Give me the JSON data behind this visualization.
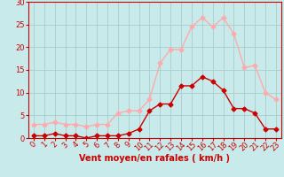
{
  "x": [
    0,
    1,
    2,
    3,
    4,
    5,
    6,
    7,
    8,
    9,
    10,
    11,
    12,
    13,
    14,
    15,
    16,
    17,
    18,
    19,
    20,
    21,
    22,
    23
  ],
  "wind_avg": [
    0.5,
    0.5,
    1.0,
    0.5,
    0.5,
    0.0,
    0.5,
    0.5,
    0.5,
    1.0,
    2.0,
    6.0,
    7.5,
    7.5,
    11.5,
    11.5,
    13.5,
    12.5,
    10.5,
    6.5,
    6.5,
    5.5,
    2.0,
    2.0
  ],
  "wind_gust": [
    3.0,
    3.0,
    3.5,
    3.0,
    3.0,
    2.5,
    3.0,
    3.0,
    5.5,
    6.0,
    6.0,
    8.5,
    16.5,
    19.5,
    19.5,
    24.5,
    26.5,
    24.5,
    26.5,
    23.0,
    15.5,
    16.0,
    10.0,
    8.5
  ],
  "color_avg": "#cc0000",
  "color_gust": "#ffaaaa",
  "bg_color": "#c8eaea",
  "grid_color": "#aacccc",
  "xlabel": "Vent moyen/en rafales ( km/h )",
  "ylabel": "",
  "ylim": [
    0,
    30
  ],
  "xlim": [
    -0.5,
    23.5
  ],
  "yticks": [
    0,
    5,
    10,
    15,
    20,
    25,
    30
  ],
  "xticks": [
    0,
    1,
    2,
    3,
    4,
    5,
    6,
    7,
    8,
    9,
    10,
    11,
    12,
    13,
    14,
    15,
    16,
    17,
    18,
    19,
    20,
    21,
    22,
    23
  ],
  "marker": "D",
  "markersize": 2.5,
  "linewidth": 1.0,
  "xlabel_fontsize": 7,
  "tick_fontsize": 6,
  "xlabel_color": "#cc0000",
  "tick_color": "#cc0000",
  "spine_color": "#cc0000"
}
